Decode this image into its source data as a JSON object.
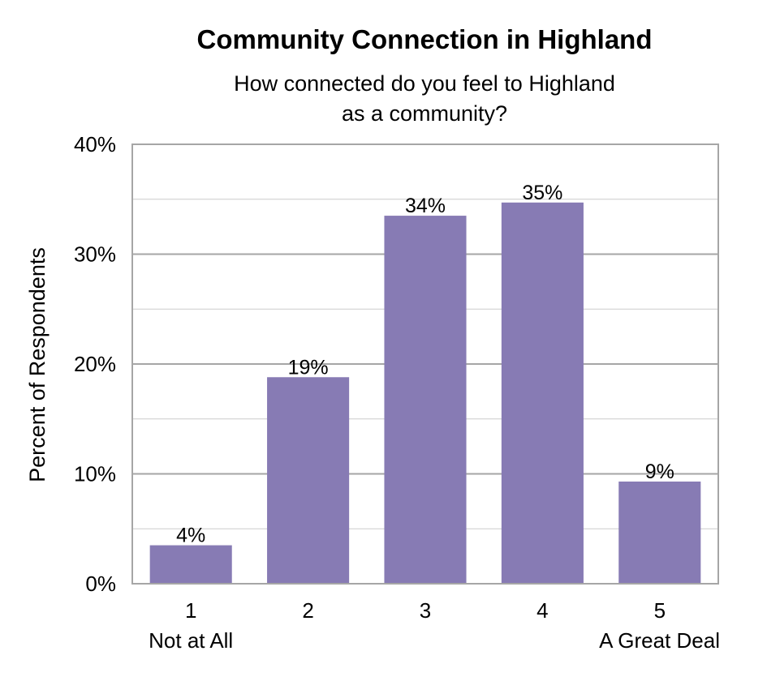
{
  "chart_data": {
    "type": "bar",
    "title": "Community Connection in Highland",
    "subtitle": [
      "How connected do you feel to Highland",
      "as a community?"
    ],
    "categories": [
      "1",
      "2",
      "3",
      "4",
      "5"
    ],
    "category_sublabels": [
      "Not at All",
      "",
      "",
      "",
      "A Great Deal"
    ],
    "values": [
      3.5,
      18.8,
      33.5,
      34.7,
      9.3
    ],
    "data_labels": [
      "4%",
      "19%",
      "34%",
      "35%",
      "9%"
    ],
    "xlabel": "",
    "ylabel": "Percent of Respondents",
    "ylim": [
      0,
      40
    ],
    "yticks": [
      0,
      10,
      20,
      30,
      40
    ],
    "ytick_labels": [
      "0%",
      "10%",
      "20%",
      "30%",
      "40%"
    ],
    "minor_gridlines": [
      5,
      15,
      25,
      35
    ],
    "grid": true,
    "legend": "none",
    "colors": {
      "bar": "#877bb4",
      "major_grid": "#a6a6a6",
      "minor_grid": "#cccccc",
      "frame": "#a6a6a6",
      "text": "#000000"
    }
  }
}
